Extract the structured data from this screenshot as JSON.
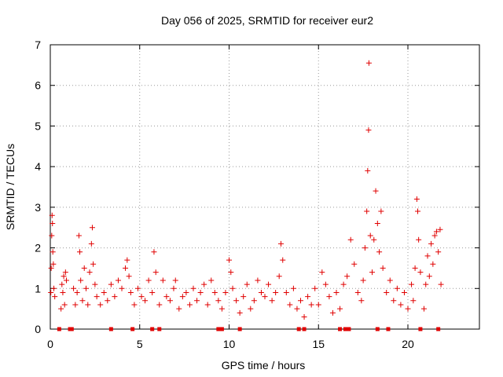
{
  "chart_data": {
    "type": "scatter",
    "title": "Day 056 of 2025, SRMTID for receiver eur2",
    "xlabel": "GPS time / hours",
    "ylabel": "SRMTID / TECUs",
    "xlim": [
      0,
      24
    ],
    "ylim": [
      0,
      7
    ],
    "x_ticks": [
      0,
      5,
      10,
      15,
      20
    ],
    "y_ticks": [
      0,
      1,
      2,
      3,
      4,
      5,
      6,
      7
    ],
    "grid": true,
    "marker": "+",
    "marker_color": "#e00000",
    "baseline_markers": {
      "marker": "square",
      "y": 0,
      "x": [
        0.5,
        1.1,
        1.2,
        3.4,
        4.6,
        5.7,
        6.1,
        9.4,
        9.6,
        10.6,
        13.9,
        14.2,
        16.2,
        16.5,
        16.7,
        18.3,
        18.9,
        20.7,
        21.7
      ]
    },
    "series": [
      {
        "name": "SRMTID",
        "points": [
          [
            0.03,
            0.9
          ],
          [
            0.05,
            1.5
          ],
          [
            0.08,
            2.3
          ],
          [
            0.1,
            2.8
          ],
          [
            0.12,
            2.6
          ],
          [
            0.14,
            1.9
          ],
          [
            0.17,
            1.6
          ],
          [
            0.2,
            1.0
          ],
          [
            0.25,
            0.8
          ],
          [
            0.6,
            0.5
          ],
          [
            0.65,
            1.1
          ],
          [
            0.7,
            0.9
          ],
          [
            0.75,
            1.3
          ],
          [
            0.8,
            0.6
          ],
          [
            0.85,
            1.4
          ],
          [
            0.9,
            1.2
          ],
          [
            1.3,
            1.0
          ],
          [
            1.4,
            0.6
          ],
          [
            1.5,
            0.9
          ],
          [
            1.6,
            2.3
          ],
          [
            1.65,
            1.9
          ],
          [
            1.7,
            1.2
          ],
          [
            1.8,
            0.7
          ],
          [
            1.9,
            1.5
          ],
          [
            2.0,
            1.0
          ],
          [
            2.1,
            0.6
          ],
          [
            2.2,
            1.4
          ],
          [
            2.3,
            2.1
          ],
          [
            2.35,
            2.5
          ],
          [
            2.4,
            1.6
          ],
          [
            2.5,
            1.1
          ],
          [
            2.6,
            0.8
          ],
          [
            2.8,
            0.6
          ],
          [
            3.0,
            0.9
          ],
          [
            3.2,
            0.7
          ],
          [
            3.4,
            1.1
          ],
          [
            3.6,
            0.8
          ],
          [
            3.8,
            1.2
          ],
          [
            4.0,
            1.0
          ],
          [
            4.2,
            1.5
          ],
          [
            4.3,
            1.7
          ],
          [
            4.4,
            1.3
          ],
          [
            4.5,
            0.9
          ],
          [
            4.7,
            0.6
          ],
          [
            4.9,
            1.0
          ],
          [
            5.1,
            0.8
          ],
          [
            5.3,
            0.7
          ],
          [
            5.5,
            1.2
          ],
          [
            5.7,
            0.9
          ],
          [
            5.8,
            1.9
          ],
          [
            5.9,
            1.4
          ],
          [
            6.1,
            0.6
          ],
          [
            6.3,
            1.2
          ],
          [
            6.5,
            0.8
          ],
          [
            6.7,
            0.7
          ],
          [
            6.9,
            1.0
          ],
          [
            7.0,
            1.2
          ],
          [
            7.2,
            0.5
          ],
          [
            7.4,
            0.8
          ],
          [
            7.6,
            0.9
          ],
          [
            7.8,
            0.6
          ],
          [
            8.0,
            1.0
          ],
          [
            8.2,
            0.7
          ],
          [
            8.4,
            0.9
          ],
          [
            8.6,
            1.1
          ],
          [
            8.8,
            0.6
          ],
          [
            9.0,
            1.2
          ],
          [
            9.2,
            0.9
          ],
          [
            9.4,
            0.7
          ],
          [
            9.6,
            0.5
          ],
          [
            9.8,
            0.9
          ],
          [
            10.0,
            1.7
          ],
          [
            10.1,
            1.4
          ],
          [
            10.2,
            1.0
          ],
          [
            10.4,
            0.7
          ],
          [
            10.6,
            0.4
          ],
          [
            10.8,
            0.8
          ],
          [
            11.0,
            1.1
          ],
          [
            11.2,
            0.5
          ],
          [
            11.4,
            0.7
          ],
          [
            11.6,
            1.2
          ],
          [
            11.8,
            0.9
          ],
          [
            12.0,
            0.8
          ],
          [
            12.2,
            1.1
          ],
          [
            12.4,
            0.7
          ],
          [
            12.6,
            0.9
          ],
          [
            12.8,
            1.3
          ],
          [
            12.9,
            2.1
          ],
          [
            13.0,
            1.7
          ],
          [
            13.2,
            0.9
          ],
          [
            13.4,
            0.6
          ],
          [
            13.6,
            1.0
          ],
          [
            13.8,
            0.5
          ],
          [
            14.0,
            0.7
          ],
          [
            14.2,
            0.3
          ],
          [
            14.4,
            0.8
          ],
          [
            14.6,
            0.6
          ],
          [
            14.8,
            1.0
          ],
          [
            15.0,
            0.6
          ],
          [
            15.2,
            1.4
          ],
          [
            15.4,
            1.1
          ],
          [
            15.6,
            0.8
          ],
          [
            15.8,
            0.4
          ],
          [
            16.0,
            0.9
          ],
          [
            16.2,
            0.5
          ],
          [
            16.4,
            1.1
          ],
          [
            16.6,
            1.3
          ],
          [
            16.8,
            2.2
          ],
          [
            17.0,
            1.6
          ],
          [
            17.2,
            0.9
          ],
          [
            17.4,
            0.7
          ],
          [
            17.5,
            1.2
          ],
          [
            17.6,
            2.0
          ],
          [
            17.7,
            2.9
          ],
          [
            17.75,
            3.9
          ],
          [
            17.8,
            4.9
          ],
          [
            17.82,
            6.55
          ],
          [
            17.9,
            2.3
          ],
          [
            18.0,
            1.4
          ],
          [
            18.1,
            2.2
          ],
          [
            18.2,
            3.4
          ],
          [
            18.3,
            2.6
          ],
          [
            18.4,
            1.9
          ],
          [
            18.5,
            2.9
          ],
          [
            18.6,
            1.5
          ],
          [
            18.8,
            0.9
          ],
          [
            19.0,
            1.2
          ],
          [
            19.2,
            0.7
          ],
          [
            19.4,
            1.0
          ],
          [
            19.6,
            0.6
          ],
          [
            19.8,
            0.9
          ],
          [
            20.0,
            0.5
          ],
          [
            20.2,
            1.1
          ],
          [
            20.3,
            0.7
          ],
          [
            20.4,
            1.5
          ],
          [
            20.5,
            3.2
          ],
          [
            20.55,
            2.9
          ],
          [
            20.6,
            2.2
          ],
          [
            20.7,
            1.4
          ],
          [
            20.9,
            0.5
          ],
          [
            21.0,
            1.1
          ],
          [
            21.1,
            1.8
          ],
          [
            21.2,
            1.3
          ],
          [
            21.3,
            2.1
          ],
          [
            21.4,
            1.6
          ],
          [
            21.5,
            2.3
          ],
          [
            21.6,
            2.4
          ],
          [
            21.7,
            1.9
          ],
          [
            21.8,
            2.45
          ],
          [
            21.85,
            1.1
          ]
        ]
      }
    ]
  }
}
